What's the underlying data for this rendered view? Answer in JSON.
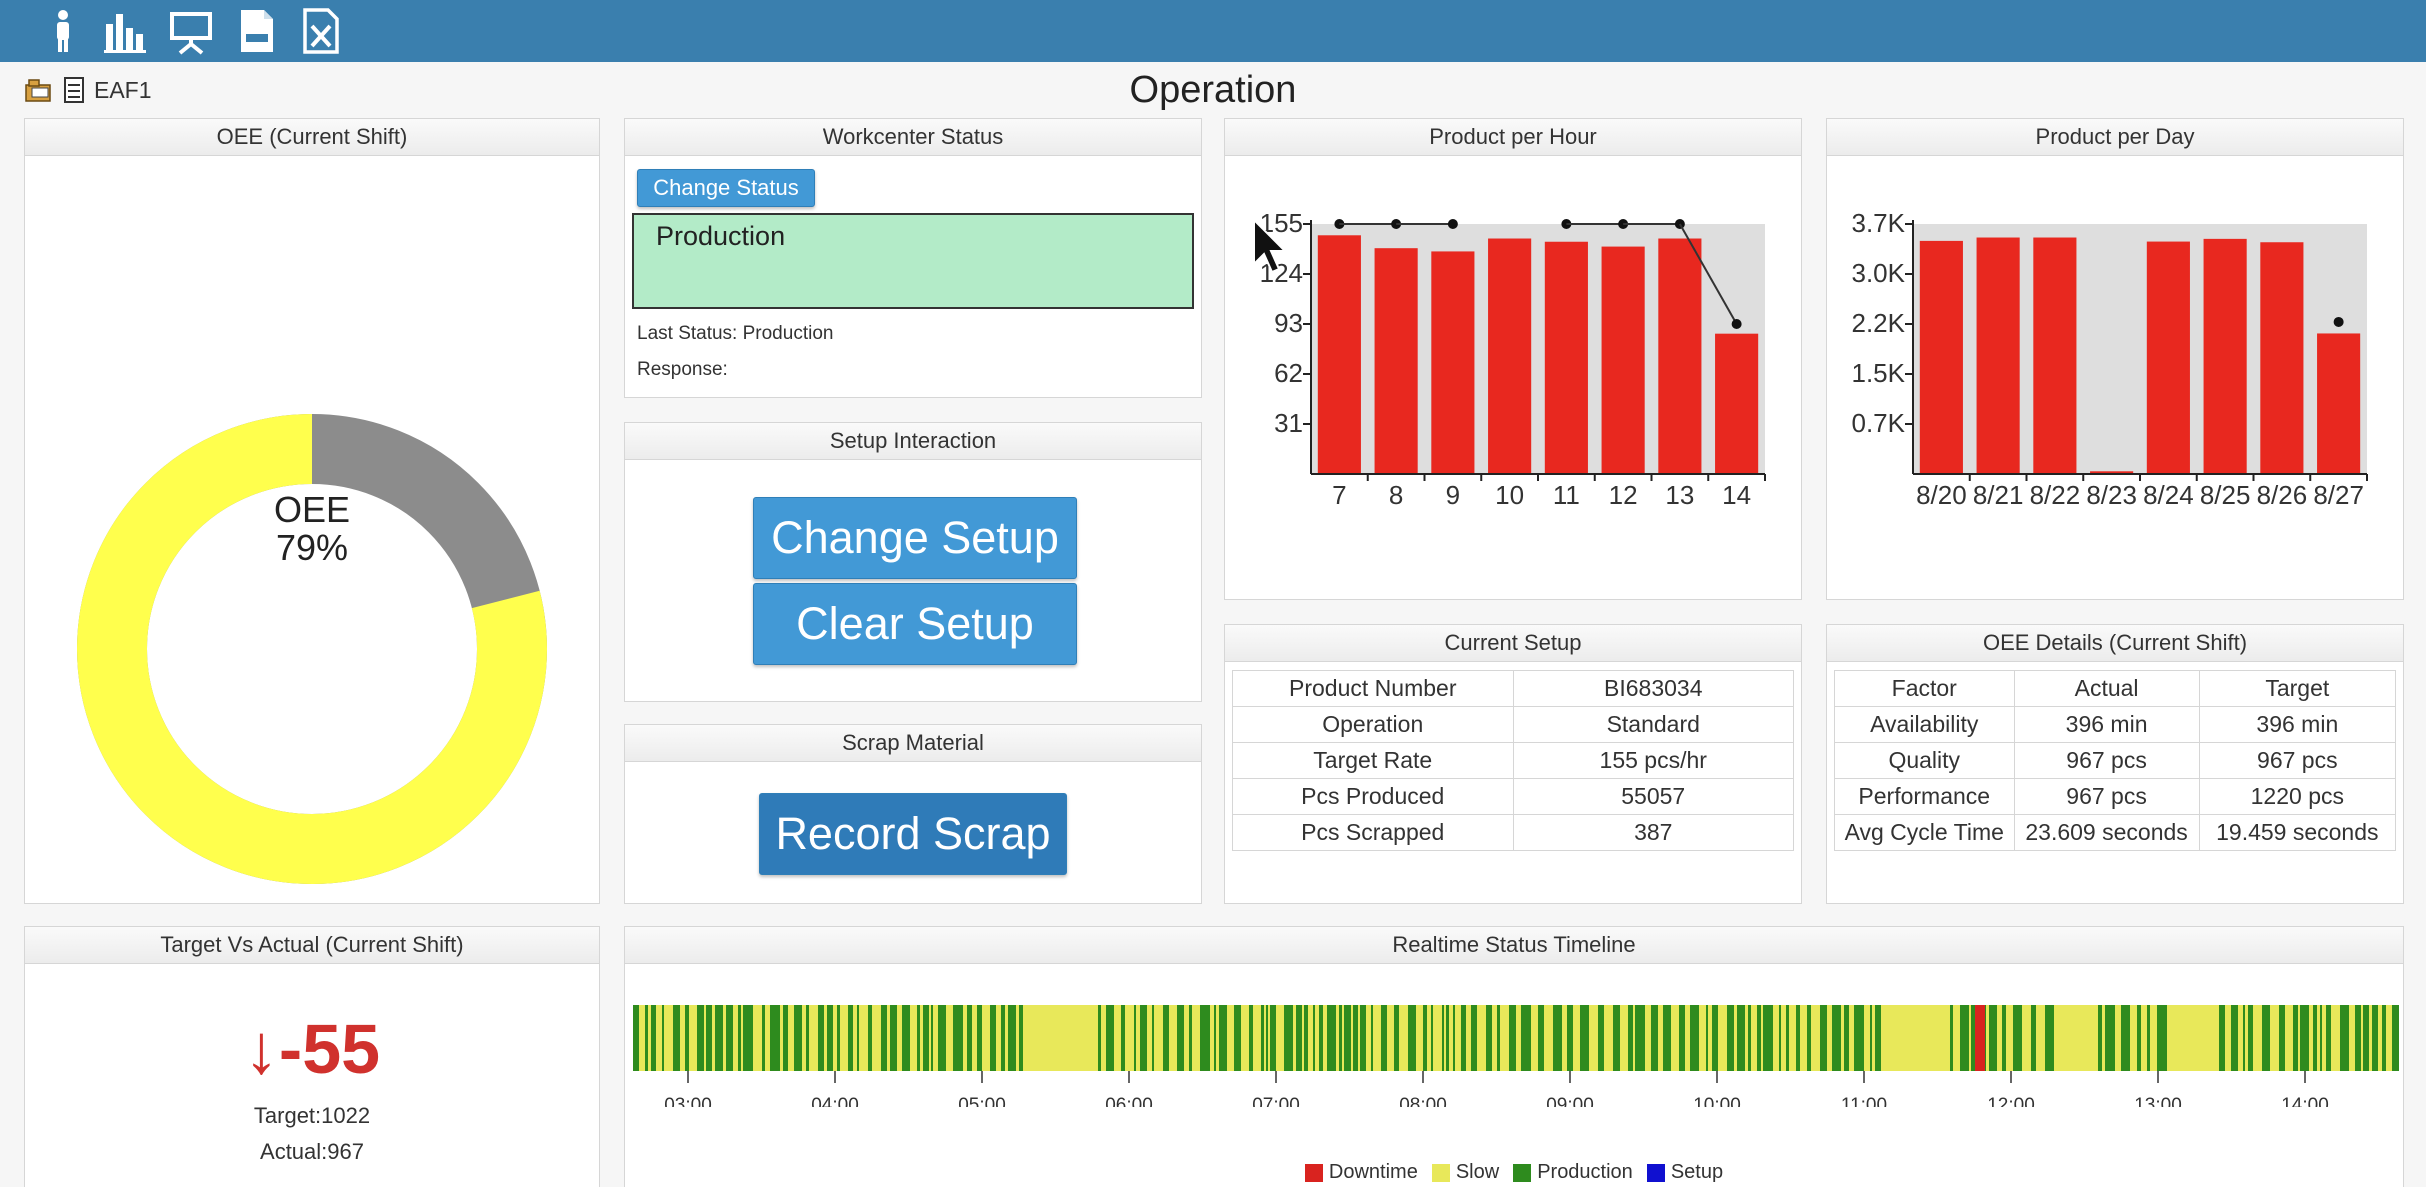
{
  "toolbar": {
    "icons": [
      "operator-icon",
      "bar-chart-icon",
      "presentation-icon",
      "log-icon",
      "excel-export-icon"
    ]
  },
  "breadcrumb": {
    "workcenter": "EAF1"
  },
  "page": {
    "title": "Operation"
  },
  "oee_panel": {
    "title": "OEE (Current Shift)",
    "label": "OEE",
    "value_text": "79%",
    "value": 79,
    "colors": {
      "achieved": "#ffff4d",
      "remaining": "#8c8c8c"
    }
  },
  "workcenter_status": {
    "title": "Workcenter Status",
    "change_button": "Change Status",
    "current": "Production",
    "last_status": "Last Status: Production",
    "response": "Response:",
    "status_color": "#b3ebc8"
  },
  "setup_interaction": {
    "title": "Setup Interaction",
    "change_button": "Change Setup",
    "clear_button": "Clear Setup"
  },
  "scrap": {
    "title": "Scrap Material",
    "record_button": "Record Scrap"
  },
  "per_hour": {
    "title": "Product per Hour"
  },
  "per_day": {
    "title": "Product per Day"
  },
  "current_setup": {
    "title": "Current Setup",
    "rows": [
      {
        "label": "Product Number",
        "value": "BI683034"
      },
      {
        "label": "Operation",
        "value": "Standard"
      },
      {
        "label": "Target Rate",
        "value": "155 pcs/hr"
      },
      {
        "label": "Pcs Produced",
        "value": "55057"
      },
      {
        "label": "Pcs Scrapped",
        "value": "387"
      }
    ]
  },
  "oee_details": {
    "title": "OEE Details (Current Shift)",
    "headers": [
      "Factor",
      "Actual",
      "Target"
    ],
    "rows": [
      [
        "Availability",
        "396 min",
        "396 min"
      ],
      [
        "Quality",
        "967 pcs",
        "967 pcs"
      ],
      [
        "Performance",
        "967 pcs",
        "1220 pcs"
      ],
      [
        "Avg Cycle Time",
        "23.609 seconds",
        "19.459 seconds"
      ]
    ]
  },
  "target_vs_actual": {
    "title": "Target Vs Actual (Current Shift)",
    "difference": "-55",
    "target_text": "Target:1022",
    "actual_text": "Actual:967",
    "color": "#d0312d"
  },
  "timeline": {
    "title": "Realtime Status Timeline",
    "ticks": [
      "03:00",
      "04:00",
      "05:00",
      "06:00",
      "07:00",
      "08:00",
      "09:00",
      "10:00",
      "11:00",
      "12:00",
      "13:00",
      "14:00"
    ],
    "legend": [
      {
        "label": "Downtime",
        "color": "#d9231f"
      },
      {
        "label": "Slow",
        "color": "#e8e85a"
      },
      {
        "label": "Production",
        "color": "#2e8b1e"
      },
      {
        "label": "Setup",
        "color": "#1010d0"
      }
    ]
  },
  "chart_data": [
    {
      "type": "bar",
      "categories": [
        "7",
        "8",
        "9",
        "10",
        "11",
        "12",
        "13",
        "14"
      ],
      "values": [
        148,
        140,
        138,
        146,
        144,
        141,
        146,
        87
      ],
      "target_line": [
        155,
        155,
        155,
        null,
        155,
        155,
        155,
        93
      ],
      "ylim": [
        0,
        155
      ],
      "yticks": [
        "155",
        "124",
        "93",
        "62",
        "31"
      ],
      "bar_color": "#e8281f",
      "grid": false
    },
    {
      "type": "bar",
      "categories": [
        "8/20",
        "8/21",
        "8/22",
        "8/23",
        "8/24",
        "8/25",
        "8/26",
        "8/27"
      ],
      "values": [
        3450,
        3500,
        3500,
        40,
        3440,
        3480,
        3430,
        2080
      ],
      "target_marker": {
        "category": "8/27",
        "value": 2250
      },
      "ylim": [
        0,
        3700
      ],
      "yticks": [
        "3.7K",
        "3.0K",
        "2.2K",
        "1.5K",
        "0.7K"
      ],
      "bar_color": "#e8281f",
      "grid": false
    }
  ]
}
